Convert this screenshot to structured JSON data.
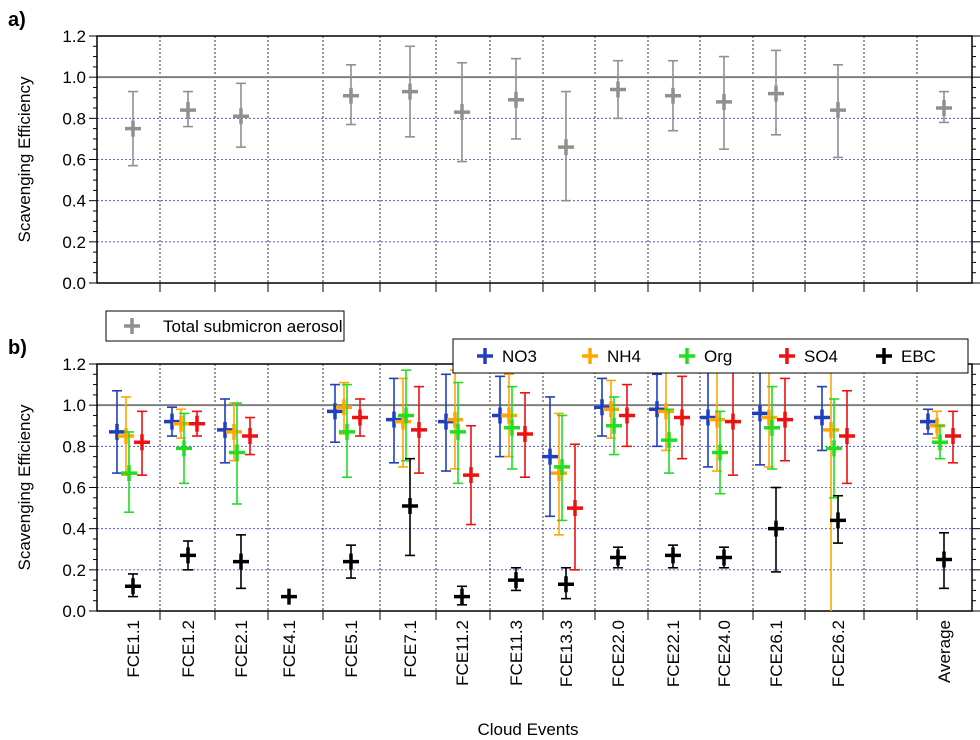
{
  "figure": {
    "panel_a_label": "a)",
    "panel_b_label": "b)",
    "xlabel": "Cloud Events"
  },
  "chart_data": [
    {
      "panel": "a",
      "type": "scatter",
      "ylabel": "Scavenging Efficiency",
      "ylim": [
        0.0,
        1.2
      ],
      "yticks": [
        "0.0",
        "0.2",
        "0.4",
        "0.6",
        "0.8",
        "1.0",
        "1.2"
      ],
      "reference_line": 1.0,
      "grid": "horizontal dashed",
      "legend_placement": "below plot, left",
      "categories": [
        "FCE1.1",
        "FCE1.2",
        "FCE2.1",
        "FCE4.1",
        "FCE5.1",
        "FCE7.1",
        "FCE11.2",
        "FCE11.3",
        "FCE13.3",
        "FCE22.0",
        "FCE22.1",
        "FCE24.0",
        "FCE26.1",
        "FCE26.2",
        "Average"
      ],
      "series": [
        {
          "name": "Total submicron aerosol",
          "color": "#909090",
          "values": [
            0.75,
            0.84,
            0.81,
            null,
            0.91,
            0.93,
            0.83,
            0.89,
            0.66,
            0.94,
            0.91,
            0.88,
            0.92,
            0.84,
            0.85
          ],
          "err_low": [
            0.57,
            0.76,
            0.66,
            null,
            0.77,
            0.71,
            0.59,
            0.7,
            0.4,
            0.8,
            0.74,
            0.65,
            0.72,
            0.61,
            0.78
          ],
          "err_high": [
            0.93,
            0.93,
            0.97,
            null,
            1.06,
            1.15,
            1.07,
            1.09,
            0.93,
            1.08,
            1.08,
            1.1,
            1.13,
            1.06,
            0.93
          ]
        }
      ]
    },
    {
      "panel": "b",
      "type": "scatter",
      "ylabel": "Scavenging Efficiency",
      "ylim": [
        0.0,
        1.2
      ],
      "yticks": [
        "0.0",
        "0.2",
        "0.4",
        "0.6",
        "0.8",
        "1.0",
        "1.2"
      ],
      "reference_line": 1.0,
      "grid": "horizontal dashed",
      "legend_placement": "top-right",
      "categories": [
        "FCE1.1",
        "FCE1.2",
        "FCE2.1",
        "FCE4.1",
        "FCE5.1",
        "FCE7.1",
        "FCE11.2",
        "FCE11.3",
        "FCE13.3",
        "FCE22.0",
        "FCE22.1",
        "FCE24.0",
        "FCE26.1",
        "FCE26.2",
        "Average"
      ],
      "series": [
        {
          "name": "NO3",
          "color": "#1f3fbf",
          "values": [
            0.87,
            0.92,
            0.88,
            null,
            0.97,
            0.93,
            0.92,
            0.95,
            0.75,
            0.99,
            0.98,
            0.94,
            0.96,
            0.94,
            0.92
          ],
          "err_low": [
            0.67,
            0.85,
            0.72,
            null,
            0.82,
            0.72,
            0.68,
            0.75,
            0.46,
            0.85,
            0.8,
            0.7,
            0.71,
            0.78,
            0.86
          ],
          "err_high": [
            1.07,
            0.99,
            1.03,
            null,
            1.1,
            1.13,
            1.15,
            1.14,
            1.04,
            1.13,
            1.15,
            1.17,
            1.2,
            1.09,
            0.98
          ]
        },
        {
          "name": "NH4",
          "color": "#ffa600",
          "values": [
            0.85,
            0.91,
            0.87,
            null,
            0.99,
            0.92,
            0.93,
            0.95,
            0.67,
            0.98,
            0.97,
            0.93,
            0.94,
            0.88,
            0.9
          ],
          "err_low": [
            0.66,
            0.84,
            0.73,
            null,
            0.86,
            0.7,
            0.69,
            0.75,
            0.37,
            0.84,
            0.78,
            0.68,
            0.7,
            0.0,
            0.84
          ],
          "err_high": [
            1.04,
            0.98,
            1.01,
            null,
            1.11,
            1.13,
            1.17,
            1.15,
            0.96,
            1.12,
            1.16,
            1.18,
            1.18,
            1.2,
            0.97
          ]
        },
        {
          "name": "Org",
          "color": "#22dd22",
          "values": [
            0.67,
            0.79,
            0.77,
            null,
            0.87,
            0.95,
            0.87,
            0.89,
            0.7,
            0.9,
            0.83,
            0.77,
            0.89,
            0.79,
            0.82
          ],
          "err_low": [
            0.48,
            0.62,
            0.52,
            null,
            0.65,
            0.73,
            0.62,
            0.69,
            0.44,
            0.76,
            0.67,
            0.57,
            0.69,
            0.55,
            0.74
          ],
          "err_high": [
            0.87,
            0.96,
            1.01,
            null,
            1.1,
            1.17,
            1.11,
            1.09,
            0.95,
            1.04,
            0.98,
            0.97,
            1.09,
            1.03,
            0.9
          ]
        },
        {
          "name": "SO4",
          "color": "#ee1111",
          "values": [
            0.82,
            0.91,
            0.85,
            null,
            0.94,
            0.88,
            0.66,
            0.86,
            0.5,
            0.95,
            0.94,
            0.92,
            0.93,
            0.85,
            0.85
          ],
          "err_low": [
            0.66,
            0.85,
            0.76,
            null,
            0.85,
            0.67,
            0.42,
            0.65,
            0.2,
            0.8,
            0.74,
            0.66,
            0.73,
            0.62,
            0.72
          ],
          "err_high": [
            0.97,
            0.97,
            0.94,
            null,
            1.03,
            1.09,
            0.9,
            1.06,
            0.81,
            1.1,
            1.14,
            1.19,
            1.13,
            1.07,
            0.97
          ]
        },
        {
          "name": "EBC",
          "color": "#000000",
          "values": [
            0.12,
            0.27,
            0.24,
            0.07,
            0.24,
            0.51,
            0.07,
            0.15,
            0.13,
            0.26,
            0.27,
            0.26,
            0.4,
            0.44,
            0.25
          ],
          "err_low": [
            0.07,
            0.2,
            0.11,
            0.07,
            0.16,
            0.27,
            0.03,
            0.1,
            0.06,
            0.21,
            0.21,
            0.21,
            0.19,
            0.33,
            0.11
          ],
          "err_high": [
            0.18,
            0.34,
            0.37,
            0.07,
            0.32,
            0.74,
            0.12,
            0.21,
            0.21,
            0.31,
            0.32,
            0.31,
            0.6,
            0.56,
            0.38
          ]
        }
      ]
    }
  ]
}
